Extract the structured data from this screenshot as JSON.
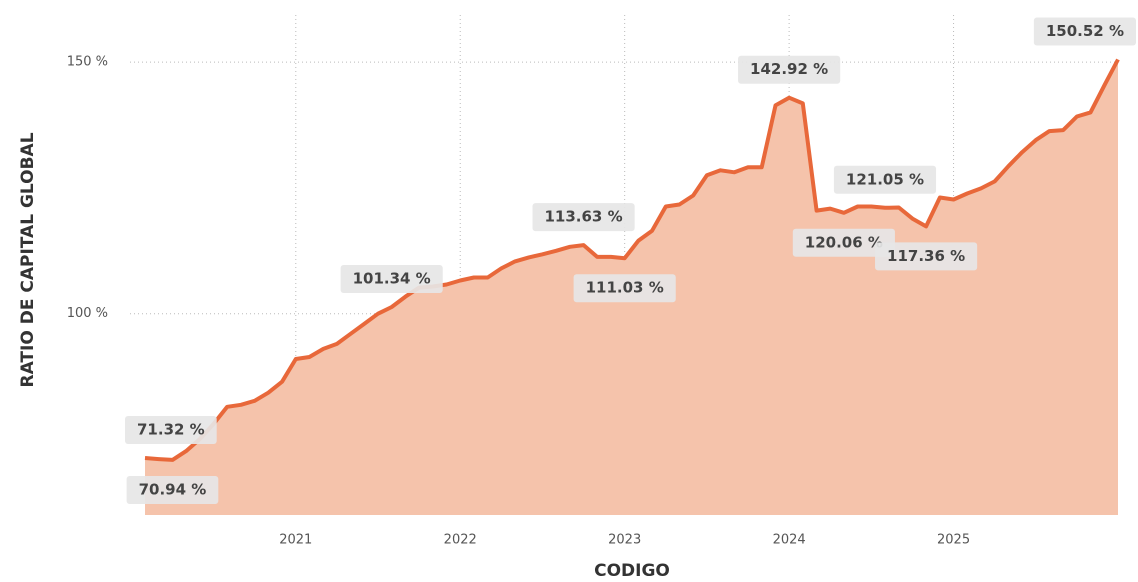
{
  "chart_data": {
    "type": "area",
    "xlabel": "CODIGO",
    "ylabel": "RATIO DE CAPITAL GLOBAL",
    "x": [
      2020.083,
      2020.167,
      2020.25,
      2020.333,
      2020.417,
      2020.5,
      2020.583,
      2020.667,
      2020.75,
      2020.833,
      2020.917,
      2021.0,
      2021.083,
      2021.167,
      2021.25,
      2021.333,
      2021.417,
      2021.5,
      2021.583,
      2021.667,
      2021.75,
      2021.833,
      2021.917,
      2022.0,
      2022.083,
      2022.167,
      2022.25,
      2022.333,
      2022.417,
      2022.5,
      2022.583,
      2022.667,
      2022.75,
      2022.833,
      2022.917,
      2023.0,
      2023.083,
      2023.167,
      2023.25,
      2023.333,
      2023.417,
      2023.5,
      2023.583,
      2023.667,
      2023.75,
      2023.833,
      2023.917,
      2024.0,
      2024.083,
      2024.167,
      2024.25,
      2024.333,
      2024.417,
      2024.5,
      2024.583,
      2024.667,
      2024.75,
      2024.833,
      2024.917,
      2025.0,
      2025.083,
      2025.167,
      2025.25,
      2025.333,
      2025.417,
      2025.5,
      2025.583,
      2025.667,
      2025.75,
      2025.833,
      2025.917,
      2026.0
    ],
    "series": [
      {
        "name": "RATIO DE CAPITAL GLOBAL",
        "color": "#e8683a",
        "fill": "#f5c3ab",
        "values": [
          71.32,
          71.1,
          70.94,
          72.7,
          75.1,
          78.1,
          81.5,
          81.9,
          82.7,
          84.3,
          86.5,
          91.0,
          91.4,
          93.0,
          94.0,
          96.0,
          98.0,
          100.0,
          101.34,
          103.4,
          105.2,
          105.4,
          105.8,
          106.6,
          107.2,
          107.2,
          109.0,
          110.4,
          111.2,
          111.8,
          112.5,
          113.3,
          113.63,
          111.3,
          111.3,
          111.03,
          114.5,
          116.5,
          121.3,
          121.7,
          123.5,
          127.5,
          128.5,
          128.1,
          129.1,
          129.1,
          141.4,
          142.92,
          141.8,
          120.5,
          120.9,
          120.06,
          121.3,
          121.3,
          121.05,
          121.1,
          118.9,
          117.36,
          123.1,
          122.7,
          123.9,
          124.9,
          126.3,
          129.3,
          132.1,
          134.5,
          136.3,
          136.5,
          139.2,
          140.0,
          145.4,
          150.52
        ],
        "value_labels": [
          "71.32 %",
          null,
          "70.94 %",
          null,
          null,
          null,
          null,
          null,
          null,
          null,
          null,
          null,
          null,
          null,
          null,
          null,
          null,
          null,
          "101.34 %",
          null,
          null,
          null,
          null,
          null,
          null,
          null,
          null,
          null,
          null,
          null,
          null,
          null,
          "113.63 %",
          null,
          null,
          "111.03 %",
          null,
          null,
          null,
          null,
          null,
          null,
          null,
          null,
          null,
          null,
          null,
          "142.92 %",
          null,
          null,
          null,
          "120.06 %",
          null,
          null,
          "121.05 %",
          null,
          null,
          "117.36 %",
          null,
          null,
          null,
          null,
          null,
          null,
          null,
          null,
          null,
          null,
          null,
          null,
          null,
          "150.52 %"
        ]
      }
    ],
    "xlim": [
      2020.083,
      2026.0
    ],
    "xticks": [
      2021,
      2022,
      2023,
      2024,
      2025
    ],
    "ylim": [
      60,
      160
    ],
    "yticks": [
      {
        "value": 100,
        "label": "100 %"
      },
      {
        "value": 150,
        "label": "150 %"
      }
    ],
    "grid": true
  }
}
